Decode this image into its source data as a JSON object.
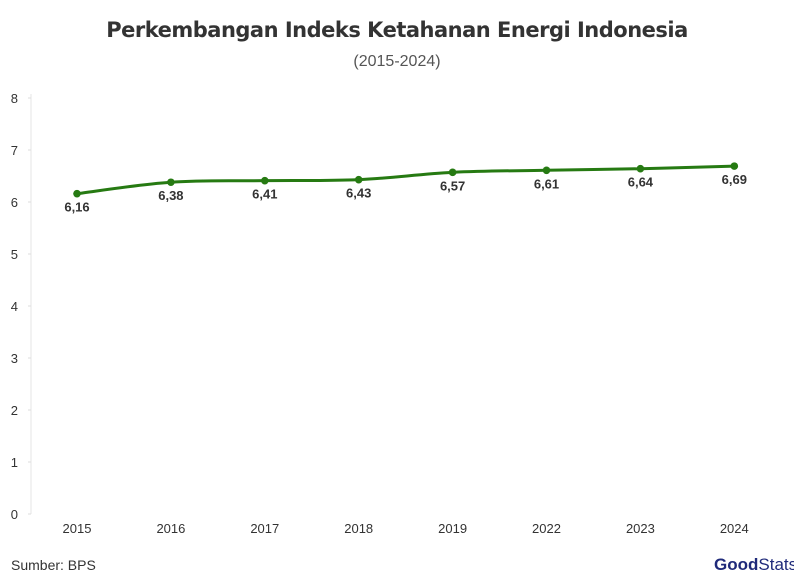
{
  "chart_data": {
    "type": "line",
    "title": "Perkembangan Indeks Ketahanan Energi Indonesia",
    "subtitle": "(2015-2024)",
    "categories": [
      "2015",
      "2016",
      "2017",
      "2018",
      "2019",
      "2022",
      "2023",
      "2024"
    ],
    "values": [
      6.16,
      6.38,
      6.41,
      6.43,
      6.57,
      6.61,
      6.64,
      6.69
    ],
    "data_labels": [
      "6,16",
      "6,38",
      "6,41",
      "6,43",
      "6,57",
      "6,61",
      "6,64",
      "6,69"
    ],
    "y_ticks": [
      "0",
      "1",
      "2",
      "3",
      "4",
      "5",
      "6",
      "7",
      "8"
    ],
    "ylim": [
      0,
      8
    ],
    "grid": false,
    "legend": "none",
    "series_color": "#267a12",
    "xlabel": "",
    "ylabel": ""
  },
  "footer": {
    "source": "Sumber: BPS",
    "logo_bold": "Good",
    "logo_light": "Stats"
  }
}
